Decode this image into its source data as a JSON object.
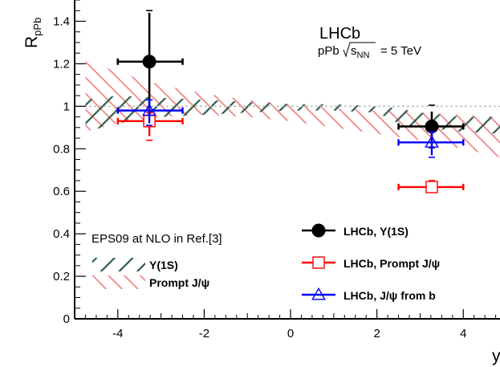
{
  "chart_data": {
    "type": "scatter",
    "xlabel": "y",
    "ylabel": "R",
    "ylabel_sub": "pPb",
    "xlim": [
      -5,
      4.85
    ],
    "ylim": [
      0,
      1.5
    ],
    "x_ticks": [
      -4,
      -2,
      0,
      2,
      4
    ],
    "x_tick_labels": [
      "-4",
      "-2",
      "0",
      "2",
      "4"
    ],
    "y_ticks": [
      0,
      0.2,
      0.4,
      0.6,
      0.8,
      1,
      1.2,
      1.4
    ],
    "y_tick_labels": [
      "0",
      "0.2",
      "0.4",
      "0.6",
      "0.8",
      "1",
      "1.2",
      "1.4"
    ],
    "reference_line": 1.0,
    "experiment_label": "LHCb",
    "system_label_prefix": "pPb",
    "system_label_sqrt_s": "s",
    "system_label_sqrt_sub": "NN",
    "system_label_suffix": "= 5 TeV",
    "model_legend_title": "EPS09 at NLO in Ref.[3]",
    "bands": [
      {
        "name": "Υ(1S)",
        "color": "#2e5b4b",
        "hatch": "backslash",
        "x": [
          -4.75,
          -4,
          -3,
          -2,
          -1,
          0,
          1,
          2,
          2.5,
          3,
          3.5,
          4.0,
          4.85
        ],
        "lower": [
          0.88,
          0.92,
          0.95,
          0.96,
          0.97,
          0.98,
          0.98,
          0.97,
          0.92,
          0.9,
          0.89,
          0.88,
          0.87
        ],
        "upper": [
          1.03,
          1.05,
          1.04,
          1.03,
          1.02,
          1.01,
          1.01,
          1.0,
          0.99,
          0.97,
          0.96,
          0.95,
          0.95
        ]
      },
      {
        "name": "Prompt J/ψ",
        "color": "#f07a7a",
        "hatch": "slash",
        "x": [
          -4.75,
          -4,
          -3,
          -2,
          -1,
          0,
          1,
          2,
          3,
          4,
          4.85
        ],
        "lower": [
          0.88,
          0.92,
          0.95,
          0.96,
          0.95,
          0.93,
          0.9,
          0.87,
          0.84,
          0.8,
          0.76
        ],
        "upper": [
          1.22,
          1.16,
          1.1,
          1.06,
          1.03,
          1.01,
          0.99,
          0.98,
          0.97,
          0.96,
          0.95
        ]
      }
    ],
    "series": [
      {
        "name": "LHCb, Υ(1S)",
        "color": "#000000",
        "marker": "filled-circle",
        "points": [
          {
            "x": -3.27,
            "y": 1.21,
            "xerr_low": 0.73,
            "xerr_high": 0.77,
            "yerr_low": 0.24,
            "yerr_high": 0.23,
            "syst_low": 0.26,
            "syst_high": 0.24
          },
          {
            "x": 3.27,
            "y": 0.905,
            "xerr_low": 0.77,
            "xerr_high": 0.73,
            "yerr_low": 0.08,
            "yerr_high": 0.07,
            "syst_low": 0.1,
            "syst_high": 0.1
          }
        ]
      },
      {
        "name": "LHCb, Prompt J/ψ",
        "color": "#ff0000",
        "marker": "open-square",
        "points": [
          {
            "x": -3.27,
            "y": 0.93,
            "xerr_low": 0.73,
            "xerr_high": 0.77,
            "yerr_low": 0.07,
            "yerr_high": 0.04,
            "syst_low": 0.09,
            "syst_high": 0.04
          },
          {
            "x": 3.27,
            "y": 0.62,
            "xerr_low": 0.77,
            "xerr_high": 0.73,
            "yerr_low": 0.02,
            "yerr_high": 0.02,
            "syst_low": 0.02,
            "syst_high": 0.03
          }
        ]
      },
      {
        "name": "LHCb, J/ψ from b",
        "color": "#0000ff",
        "marker": "open-triangle",
        "points": [
          {
            "x": -3.27,
            "y": 0.98,
            "xerr_low": 0.73,
            "xerr_high": 0.77,
            "yerr_low": 0.06,
            "yerr_high": 0.05,
            "syst_low": 0.07,
            "syst_high": 0.05
          },
          {
            "x": 3.27,
            "y": 0.83,
            "xerr_low": 0.77,
            "xerr_high": 0.73,
            "yerr_low": 0.06,
            "yerr_high": 0.05,
            "syst_low": 0.07,
            "syst_high": 0.05
          }
        ]
      }
    ],
    "legend_placement": "bottom-right",
    "model_legend_placement": "bottom-left",
    "grid": false
  }
}
